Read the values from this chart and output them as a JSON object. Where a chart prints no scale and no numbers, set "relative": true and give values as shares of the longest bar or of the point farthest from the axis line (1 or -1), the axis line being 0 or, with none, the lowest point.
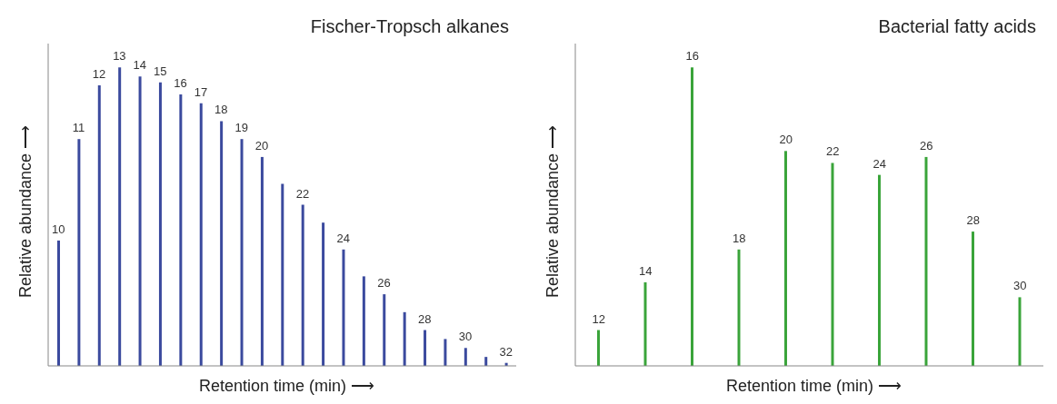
{
  "chart_data": [
    {
      "type": "bar",
      "title": "Fischer-Tropsch alkanes",
      "xlabel": "Retention time (min) ⟶",
      "ylabel": "Relative abundance ⟶",
      "relative": true,
      "color": "#3b4a9e",
      "categories": [
        "10",
        "11",
        "12",
        "13",
        "14",
        "15",
        "16",
        "17",
        "18",
        "19",
        "20",
        null,
        "22",
        null,
        "24",
        null,
        "26",
        null,
        "28",
        null,
        "30",
        null,
        "32"
      ],
      "values": [
        0.42,
        0.76,
        0.94,
        1,
        0.97,
        0.95,
        0.91,
        0.88,
        0.82,
        0.76,
        0.7,
        0.61,
        0.54,
        0.48,
        0.39,
        0.3,
        0.24,
        0.18,
        0.12,
        0.09,
        0.06,
        0.03,
        0.01
      ]
    },
    {
      "type": "bar",
      "title": "Bacterial fatty acids",
      "xlabel": "Retention time (min) ⟶",
      "ylabel": "Relative abundance ⟶",
      "relative": true,
      "color": "#3aa43a",
      "categories": [
        "12",
        "14",
        "16",
        "18",
        "20",
        "22",
        "24",
        "26",
        "28",
        "30"
      ],
      "values": [
        0.12,
        0.28,
        1,
        0.39,
        0.72,
        0.68,
        0.64,
        0.7,
        0.45,
        0.23
      ]
    }
  ]
}
